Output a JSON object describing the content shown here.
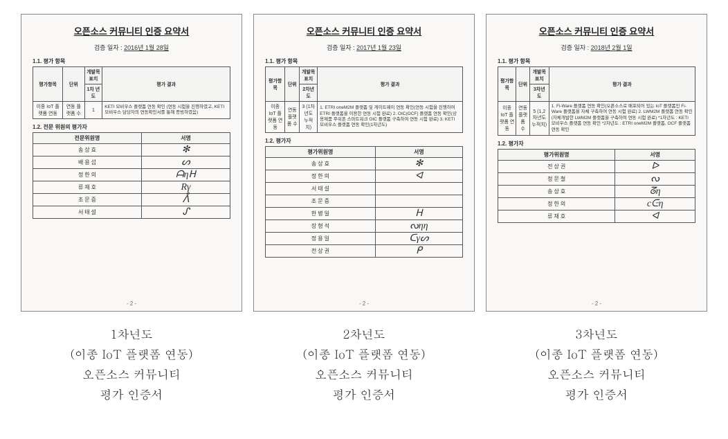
{
  "certs": [
    {
      "doc_title": "오픈소스 커뮤니티 인증 요약서",
      "date_label": "검증 일자 :",
      "date_value": "2016년 1월 28일",
      "sec1_label": "1.1. 평가 항목",
      "eval_headers": {
        "h1": "평가항목",
        "h2": "단위",
        "h3a": "개발목표치",
        "h3b": "1차 년도",
        "h4": "평가 결과"
      },
      "eval_row": {
        "item": "이종 IoT\n플랫폼 연동",
        "unit": "연동\n플랫폼 수",
        "target": "1",
        "result": "KETI 모비우스 플랫폼 연동 확인\n(연동 시험을 진행하였고, KETI 모비우스 담당자의 연동확인서를 통해 증빙하였음)"
      },
      "sec2_label": "1.2. 전문 위원의 평가자",
      "sign_headers": {
        "c1": "전문위원명",
        "c2": "서명"
      },
      "signers": [
        {
          "name": "송 상 효",
          "sig": "✻"
        },
        {
          "name": "배 용 섭",
          "sig": "ᔕ"
        },
        {
          "name": "정 한 의",
          "sig": "ᗩηᕼ"
        },
        {
          "name": "류 재 호",
          "sig": "Rγ"
        },
        {
          "name": "조 문 증",
          "sig": "ᐰ"
        },
        {
          "name": "서 태 설",
          "sig": "ᔑ"
        }
      ],
      "page_num": "- 2 -",
      "caption_line1": "1차년도",
      "caption_line2": "(이종 IoT 플랫폼 연동)",
      "caption_line3": "오픈소스 커뮤니티",
      "caption_line4": "평가 인증서"
    },
    {
      "doc_title": "오픈소스 커뮤니티 인증 요약서",
      "date_label": "검증 일자 :",
      "date_value": "2017년 1월 23일",
      "sec1_label": "1.1. 평가 항목",
      "eval_headers": {
        "h1": "평가항목",
        "h2": "단위",
        "h3a": "개발목표치",
        "h3b": "2차년도",
        "h4": "평가 결과"
      },
      "eval_row": {
        "item": "이종 IoT\n플랫폼 연동",
        "unit": "연동\n플랫폼 수",
        "target": "3\n(1차년도\n누적치)",
        "result": "1. ETRI oneM2M 플랫폼 및 게이트웨이 연동 확인(연동 시험을 진행하여 ETRI 플랫폼을 이용한 연동 시험 완료)\n2. OIC(OCF) 플랫폼 연동 확인(상용제품 푸쉬폰 스마트워크 OIC 플랫폼 구축하여 연동 시험 완료)\n3. KETI 모비우스 플랫폼 연동 확인(1차년도)"
      },
      "sec2_label": "1.2. 평가자",
      "sign_headers": {
        "c1": "평가위원명",
        "c2": "서명"
      },
      "signers": [
        {
          "name": "송 상 효",
          "sig": "✻"
        },
        {
          "name": "정 한 의",
          "sig": "ᐊ"
        },
        {
          "name": "서 태 설",
          "sig": ""
        },
        {
          "name": "조 문 증",
          "sig": ""
        },
        {
          "name": "한 병 일",
          "sig": "ᕼ"
        },
        {
          "name": "장 형 석",
          "sig": "ᔓηη"
        },
        {
          "name": "정 용 일",
          "sig": "ᑕγᔕ"
        },
        {
          "name": "전 상 권",
          "sig": "ᑭ"
        }
      ],
      "page_num": "- 2 -",
      "caption_line1": "2차년도",
      "caption_line2": "(이종 IoT 플랫폼 연동)",
      "caption_line3": "오픈소스 커뮤니티",
      "caption_line4": "평가 인증서"
    },
    {
      "doc_title": "오픈소스 커뮤니티 인증 요약서",
      "date_label": "검증 일자 :",
      "date_value": "2018년 2월 1일",
      "sec1_label": "1.1. 평가 항목",
      "eval_headers": {
        "h1": "평가항목",
        "h2": "단위",
        "h3a": "개발목표치",
        "h3b": "3차년도",
        "h4": "평가 결과"
      },
      "eval_row": {
        "item": "이종 IoT\n플랫폼 연동",
        "unit": "연동\n플랫폼 수",
        "target": "5\n(1,2차년도\n누적치)",
        "result": "1. Fi-Ware 플랫폼 연동 확인(오픈소스로 배포되어 있는 IoT 플랫폼인 Fi-Ware 플랫폼을 자체 구축하여 연동 시험 완료)\n2. LWM2M 플랫폼 연동 확인(자체개발한 LWM2M 플랫폼을 구축하여 연동 시험 완료)\n*1차년도 : KETI 모비우스 플랫폼 연동 확인\n*2차년도 : ETRI oneM2M 플랫폼, OCF 플랫폼 연동 확인"
      },
      "sec2_label": "1.2. 평가자",
      "sign_headers": {
        "c1": "평가위원명",
        "c2": "서명"
      },
      "signers": [
        {
          "name": "전 상 권",
          "sig": "ᐅ"
        },
        {
          "name": "정 문 철",
          "sig": "ᔓ"
        },
        {
          "name": "송 상 효",
          "sig": "ᘔη"
        },
        {
          "name": "정 한 의",
          "sig": "cᕮη"
        },
        {
          "name": "류 재 호",
          "sig": "ᐊ"
        }
      ],
      "page_num": "- 2 -",
      "caption_line1": "3차년도",
      "caption_line2": "(이종 IoT 플랫폼 연동)",
      "caption_line3": "오픈소스 커뮤니티",
      "caption_line4": "평가 인증서"
    }
  ]
}
